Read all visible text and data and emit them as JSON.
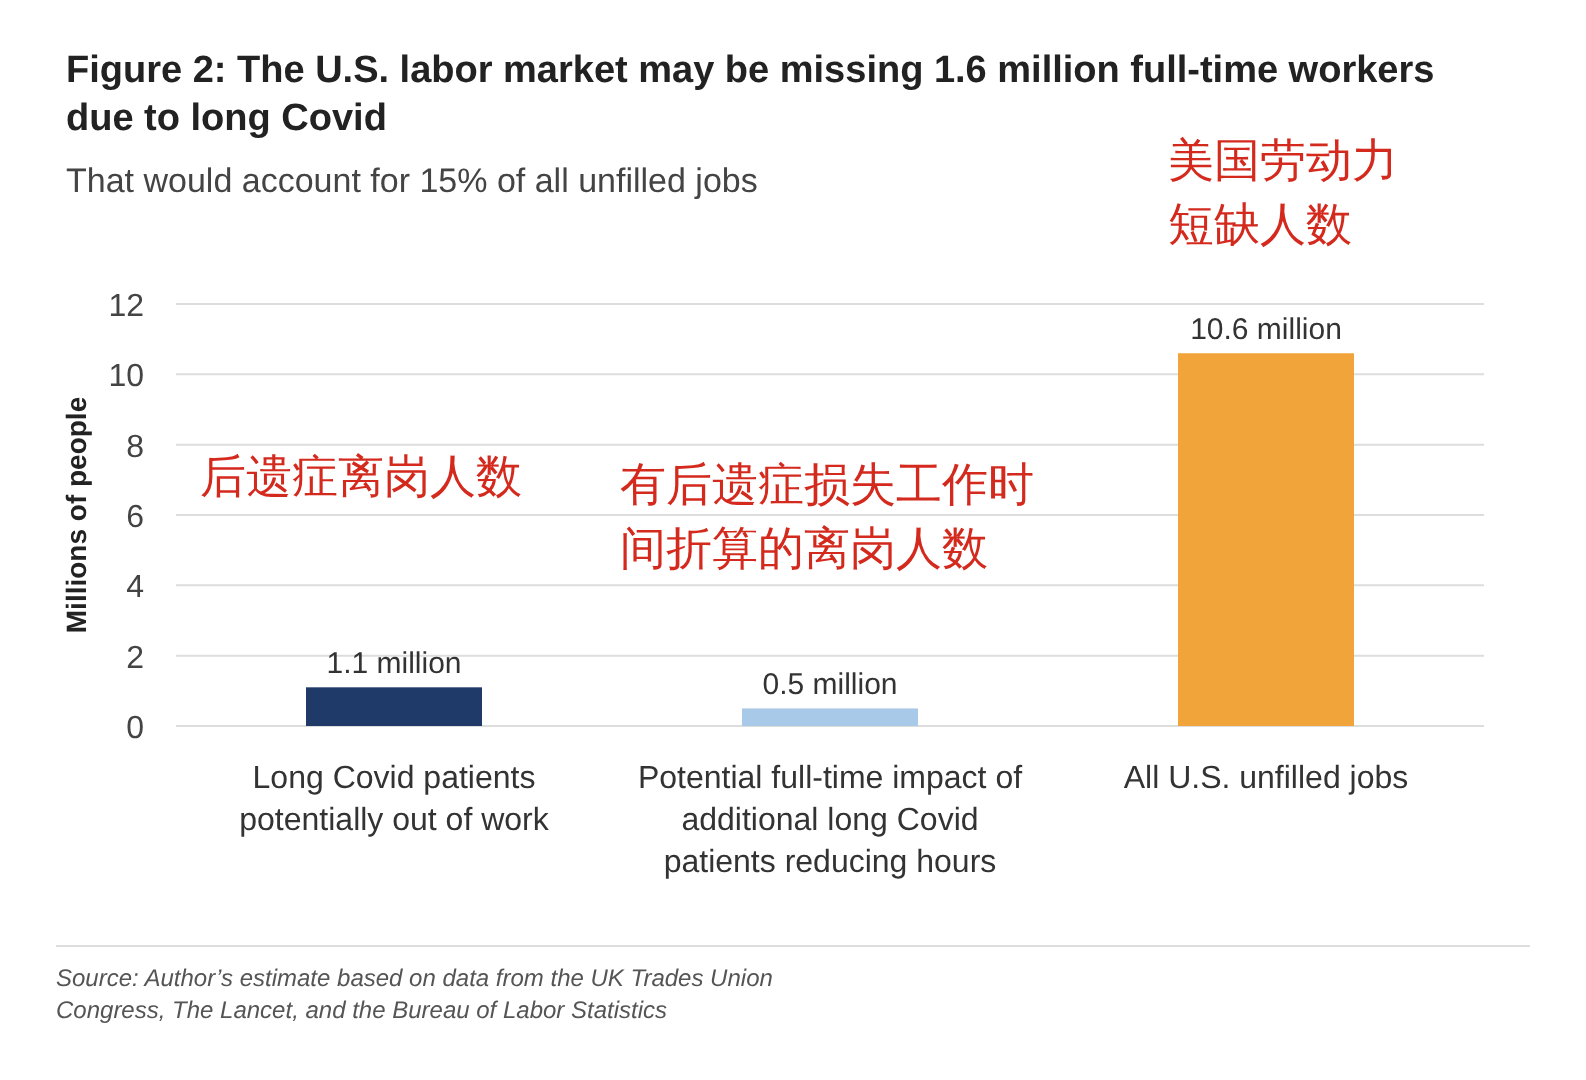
{
  "chart_data": {
    "type": "bar",
    "title": "Figure 2: The U.S. labor market may be missing 1.6 million full-time workers due to long Covid",
    "subtitle": "That would account for 15% of all unfilled jobs",
    "ylabel": "Millions of people",
    "categories": [
      "Long Covid patients potentially out of work",
      "Potential full-time impact of additional long Covid patients reducing hours",
      "All U.S. unfilled jobs"
    ],
    "values": [
      1.1,
      0.5,
      10.6
    ],
    "colors": [
      "#1f3a68",
      "#a9c9e8",
      "#f0a43a"
    ],
    "value_labels": [
      "1.1 million",
      "0.5 million",
      "10.6 million"
    ],
    "ylim": [
      0,
      12
    ],
    "yticks": [
      0,
      2,
      4,
      6,
      8,
      10,
      12
    ],
    "grid": "y",
    "annotations": [
      "后遗症离岗人数",
      "有后遗症损失工作时间折算的离岗人数",
      "美国劳动力短缺人数",
      "Source: Author’s estimate based on data from the UK Trades Union Congress, The Lancet, and the Bureau of Labor Statistics"
    ]
  }
}
